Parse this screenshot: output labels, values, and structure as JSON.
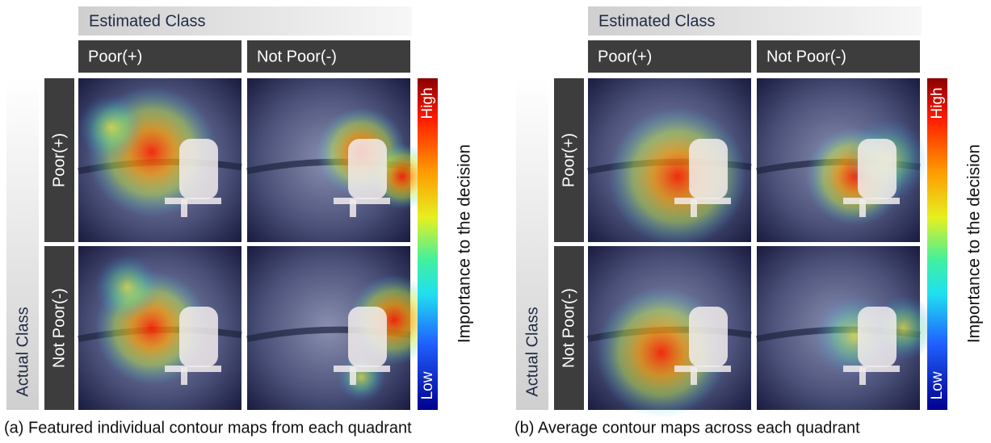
{
  "panels": [
    {
      "estimated_class_label": "Estimated Class",
      "columns": [
        "Poor(+)",
        "Not Poor(-)"
      ],
      "actual_class_label": "Actual Class",
      "rows": [
        "Poor(+)",
        "Not Poor(-)"
      ],
      "colorbar": {
        "high": "High",
        "low": "Low",
        "label": "Importance to the decision"
      },
      "caption": "(a) Featured individual contour maps from each quadrant"
    },
    {
      "estimated_class_label": "Estimated Class",
      "columns": [
        "Poor(+)",
        "Not Poor(-)"
      ],
      "actual_class_label": "Actual Class",
      "rows": [
        "Poor(+)",
        "Not Poor(-)"
      ],
      "colorbar": {
        "high": "High",
        "low": "Low",
        "label": "Importance to the decision"
      },
      "caption": "(b) Average contour maps across each quadrant"
    }
  ]
}
